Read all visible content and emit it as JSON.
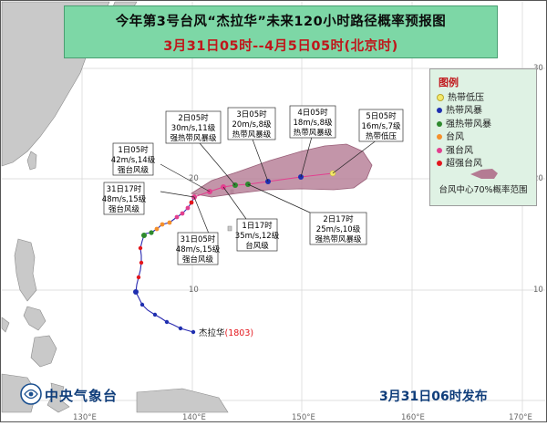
{
  "title": {
    "main": "今年第3号台风“杰拉华”未来120小时路径概率预报图",
    "time_range": "3月31日05时--4月5日05时(北京时)"
  },
  "axes": {
    "lon_labels": [
      "130°E",
      "140°E",
      "150°E",
      "160°E",
      "170°E"
    ],
    "lat_labels": [
      "10",
      "20",
      "30"
    ]
  },
  "colors": {
    "sea": "#ffffff",
    "land": "#c9c9c9",
    "grid": "#cfcfcf",
    "cone": "#b47b93",
    "track_past": "#2a2ab0",
    "tropical_depression": "#f4e96a",
    "tropical_storm": "#1f2fb0",
    "severe_tropical_storm": "#2e8a2e",
    "typhoon": "#f5902b",
    "severe_typhoon": "#e2408f",
    "super_typhoon": "#e3161c"
  },
  "legend": {
    "title": "图例",
    "items": [
      {
        "label": "热带低压",
        "color_key": "tropical_depression"
      },
      {
        "label": "热带风暴",
        "color_key": "tropical_storm"
      },
      {
        "label": "强热带风暴",
        "color_key": "severe_tropical_storm"
      },
      {
        "label": "台风",
        "color_key": "typhoon"
      },
      {
        "label": "强台风",
        "color_key": "severe_typhoon"
      },
      {
        "label": "超强台风",
        "color_key": "super_typhoon"
      }
    ],
    "probability_label": "台风中心70%概率范围"
  },
  "storm_label": {
    "name": "杰拉华",
    "code": "(1803)"
  },
  "forecast_points": [
    {
      "time": "31日05时",
      "speed": "48m/s,15级",
      "category": "强台风级"
    },
    {
      "time": "31日17时",
      "speed": "48m/s,15级",
      "category": "强台风级"
    },
    {
      "time": "1日05时",
      "speed": "42m/s,14级",
      "category": "强台风级"
    },
    {
      "time": "1日17时",
      "speed": "35m/s,12级",
      "category": "台风级"
    },
    {
      "time": "2日05时",
      "speed": "30m/s,11级",
      "category": "强热带风暴级"
    },
    {
      "time": "2日17时",
      "speed": "25m/s,10级",
      "category": "强热带风暴级"
    },
    {
      "time": "3日05时",
      "speed": "20m/s,8级",
      "category": "热带风暴级"
    },
    {
      "time": "4日05时",
      "speed": "18m/s,8级",
      "category": "热带风暴级"
    },
    {
      "time": "5日05时",
      "speed": "16m/s,7级",
      "category": "热带低压"
    }
  ],
  "agency": "中央气象台",
  "release": "3月31日06时发布"
}
